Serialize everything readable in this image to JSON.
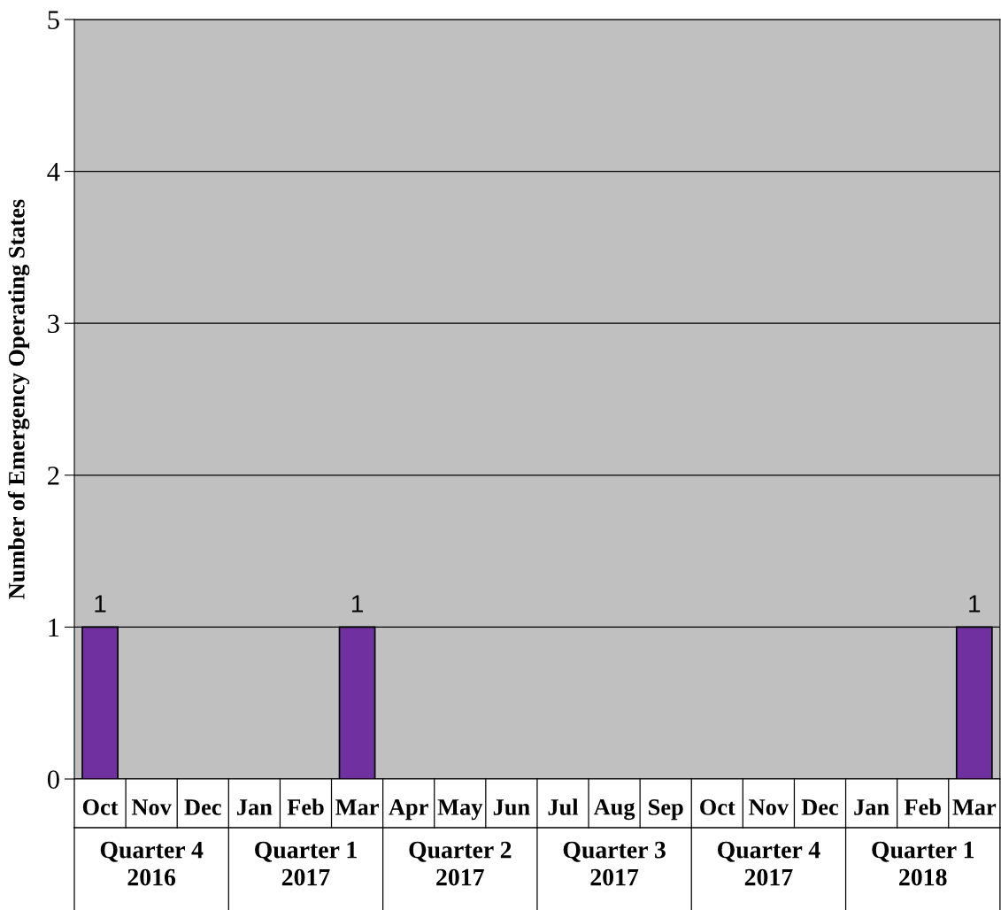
{
  "chart_data": {
    "type": "bar",
    "ylabel": "Number of Emergency Operating States",
    "categories": [
      "Oct",
      "Nov",
      "Dec",
      "Jan",
      "Feb",
      "Mar",
      "Apr",
      "May",
      "Jun",
      "Jul",
      "Aug",
      "Sep",
      "Oct",
      "Nov",
      "Dec",
      "Jan",
      "Feb",
      "Mar"
    ],
    "values": [
      1,
      null,
      null,
      null,
      null,
      1,
      null,
      null,
      null,
      null,
      null,
      null,
      null,
      null,
      null,
      null,
      null,
      1
    ],
    "value_labels": [
      "1",
      null,
      null,
      null,
      null,
      "1",
      null,
      null,
      null,
      null,
      null,
      null,
      null,
      null,
      null,
      null,
      null,
      "1"
    ],
    "color": "#7030a0",
    "ylim": [
      0,
      5
    ],
    "yticks": [
      0,
      1,
      2,
      3,
      4,
      5
    ],
    "grid": "y",
    "legend": false,
    "annotations": [
      "Quarter 4\n2016",
      "Quarter 1\n2017",
      "Quarter 2\n2017",
      "Quarter 3\n2017",
      "Quarter 4\n2017",
      "Quarter 1\n2018"
    ]
  }
}
